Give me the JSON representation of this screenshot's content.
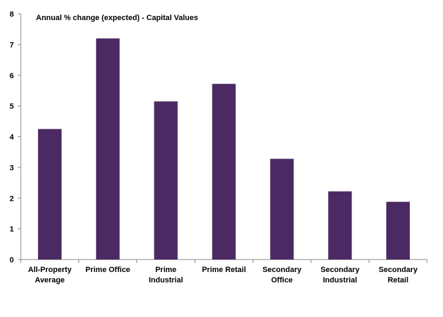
{
  "chart_data": {
    "type": "bar",
    "title": "Annual % change (expected) - Capital Values",
    "categories": [
      [
        "All-Property",
        "Average"
      ],
      [
        "Prime Office"
      ],
      [
        "Prime",
        "Industrial"
      ],
      [
        "Prime Retail"
      ],
      [
        "Secondary",
        "Office"
      ],
      [
        "Secondary",
        "Industrial"
      ],
      [
        "Secondary",
        "Retail"
      ]
    ],
    "values": [
      4.25,
      7.2,
      5.15,
      5.72,
      3.28,
      2.22,
      1.88
    ],
    "ylim": [
      0,
      8
    ],
    "yticks": [
      0,
      1,
      2,
      3,
      4,
      5,
      6,
      7,
      8
    ],
    "grid": false,
    "bar_color": "#4b2a63"
  }
}
